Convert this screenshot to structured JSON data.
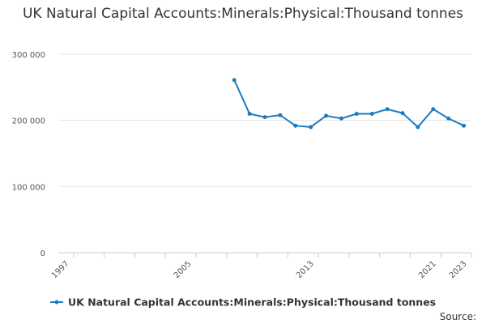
{
  "chart_data": {
    "type": "line",
    "title": "UK Natural Capital Accounts:Minerals:Physical:Thousand tonnes",
    "xlabel": "",
    "ylabel": "",
    "x": [
      2008,
      2009,
      2010,
      2011,
      2012,
      2013,
      2014,
      2015,
      2016,
      2017,
      2018,
      2019,
      2020,
      2021,
      2022,
      2023
    ],
    "series": [
      {
        "name": "UK Natural Capital Accounts:Minerals:Physical:Thousand tonnes",
        "color": "#1f7bbf",
        "values": [
          261000,
          210000,
          205000,
          208000,
          192000,
          190000,
          207000,
          203000,
          210000,
          210000,
          217000,
          211000,
          190000,
          217000,
          203000,
          192000
        ]
      }
    ],
    "xlim": [
      1996.5,
      2023.5
    ],
    "ylim": [
      0,
      300000
    ],
    "x_ticks": [
      {
        "value": 1997,
        "label": "1997"
      },
      {
        "value": 2005,
        "label": "2005"
      },
      {
        "value": 2013,
        "label": "2013"
      },
      {
        "value": 2021,
        "label": "2021"
      },
      {
        "value": 2023,
        "label": "2023"
      }
    ],
    "y_ticks": [
      {
        "value": 0,
        "label": "0"
      },
      {
        "value": 100000,
        "label": "100 000"
      },
      {
        "value": 200000,
        "label": "200 000"
      },
      {
        "value": 300000,
        "label": "300 000"
      }
    ],
    "grid": true,
    "legend": "bottom-center"
  },
  "source_label": "Source:"
}
